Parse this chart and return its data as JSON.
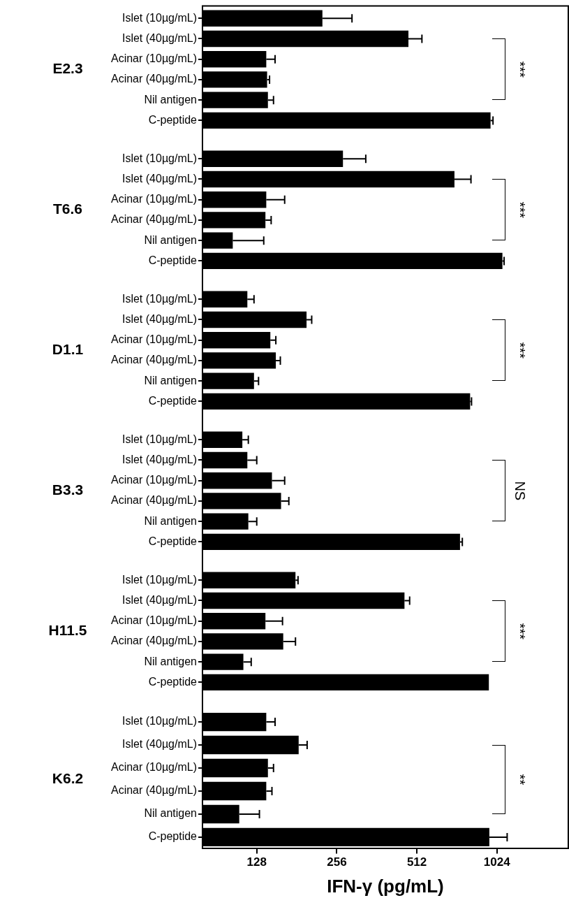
{
  "chart_data": [
    {
      "type": "bar",
      "orientation": "horizontal",
      "log": "x",
      "ylabel": "E2.3",
      "categories": [
        "Islet (10µg/mL)",
        "Islet (40µg/mL)",
        "Acinar (10µg/mL)",
        "Acinar (40µg/mL)",
        "Nil antigen",
        "C-peptide"
      ],
      "values": [
        226,
        476,
        139,
        140,
        141,
        969
      ],
      "errors": [
        [
          226,
          292
        ],
        [
          476,
          535
        ],
        [
          139,
          150
        ],
        [
          140,
          143
        ],
        [
          141,
          148
        ],
        [
          969,
          990
        ]
      ],
      "color": "#000000",
      "xlim": [
        80,
        1900
      ],
      "xticks": [
        128,
        256,
        512,
        1024
      ],
      "tick_labels": "y",
      "annotations": [
        "***"
      ]
    },
    {
      "type": "bar",
      "orientation": "horizontal",
      "log": "x",
      "ylabel": "T6.6",
      "categories": [
        "Islet (10µg/mL)",
        "Islet (40µg/mL)",
        "Acinar (10µg/mL)",
        "Acinar (40µg/mL)",
        "Nil antigen",
        "C-peptide"
      ],
      "values": [
        270,
        709,
        139,
        138,
        104,
        1074
      ],
      "errors": [
        [
          270,
          329
        ],
        [
          709,
          818
        ],
        [
          139,
          163
        ],
        [
          138,
          145
        ],
        [
          104,
          136
        ],
        [
          1074,
          1090
        ]
      ],
      "color": "#000000",
      "xlim": [
        80,
        1900
      ],
      "xticks": [
        128,
        256,
        512,
        1024
      ],
      "tick_labels": "y",
      "annotations": [
        "***"
      ]
    },
    {
      "type": "bar",
      "orientation": "horizontal",
      "log": "x",
      "ylabel": "D1.1",
      "categories": [
        "Islet (10µg/mL)",
        "Islet (40µg/mL)",
        "Acinar (10µg/mL)",
        "Acinar (40µg/mL)",
        "Nil antigen",
        "C-peptide"
      ],
      "values": [
        118,
        197,
        144,
        151,
        125,
        812
      ],
      "errors": [
        [
          118,
          125
        ],
        [
          197,
          206
        ],
        [
          144,
          151
        ],
        [
          151,
          157
        ],
        [
          125,
          130
        ],
        [
          812,
          822
        ]
      ],
      "color": "#000000",
      "xlim": [
        80,
        1900
      ],
      "xticks": [
        128,
        256,
        512,
        1024
      ],
      "tick_labels": "y",
      "annotations": [
        "***"
      ]
    },
    {
      "type": "bar",
      "orientation": "horizontal",
      "log": "x",
      "ylabel": "B3.3",
      "categories": [
        "Islet (10µg/mL)",
        "Islet (40µg/mL)",
        "Acinar (10µg/mL)",
        "Acinar (40µg/mL)",
        "Nil antigen",
        "C-peptide"
      ],
      "values": [
        113,
        118,
        146,
        158,
        119,
        744
      ],
      "errors": [
        [
          113,
          119
        ],
        [
          118,
          128
        ],
        [
          146,
          163
        ],
        [
          158,
          169
        ],
        [
          119,
          128
        ],
        [
          744,
          759
        ]
      ],
      "color": "#000000",
      "xlim": [
        80,
        1900
      ],
      "xticks": [
        128,
        256,
        512,
        1024
      ],
      "tick_labels": "y",
      "annotations": [
        "NS"
      ]
    },
    {
      "type": "bar",
      "orientation": "horizontal",
      "log": "x",
      "ylabel": "H11.5",
      "categories": [
        "Islet (10µg/mL)",
        "Islet (40µg/mL)",
        "Acinar (10µg/mL)",
        "Acinar (40µg/mL)",
        "Nil antigen",
        "C-peptide"
      ],
      "values": [
        179,
        460,
        138,
        161,
        114,
        955
      ],
      "errors": [
        [
          179,
          183
        ],
        [
          460,
          481
        ],
        [
          138,
          160
        ],
        [
          161,
          179
        ],
        [
          114,
          122
        ],
        null
      ],
      "color": "#000000",
      "xlim": [
        80,
        1900
      ],
      "xticks": [
        128,
        256,
        512,
        1024
      ],
      "tick_labels": "y",
      "annotations": [
        "***"
      ]
    },
    {
      "type": "bar",
      "orientation": "horizontal",
      "log": "x",
      "ylabel": "K6.2",
      "xlabel": "IFN-γ (pg/mL)",
      "categories": [
        "Islet (10µg/mL)",
        "Islet (40µg/mL)",
        "Acinar (10µg/mL)",
        "Acinar (40µg/mL)",
        "Nil antigen",
        "C-peptide"
      ],
      "values": [
        139,
        184,
        141,
        139,
        110,
        959
      ],
      "errors": [
        [
          139,
          150
        ],
        [
          184,
          198
        ],
        [
          141,
          148
        ],
        [
          139,
          146
        ],
        [
          110,
          131
        ],
        [
          959,
          1119
        ]
      ],
      "color": "#000000",
      "xlim": [
        80,
        1900
      ],
      "xticks": [
        128,
        256,
        512,
        1024
      ],
      "annotations": [
        "**"
      ]
    }
  ]
}
